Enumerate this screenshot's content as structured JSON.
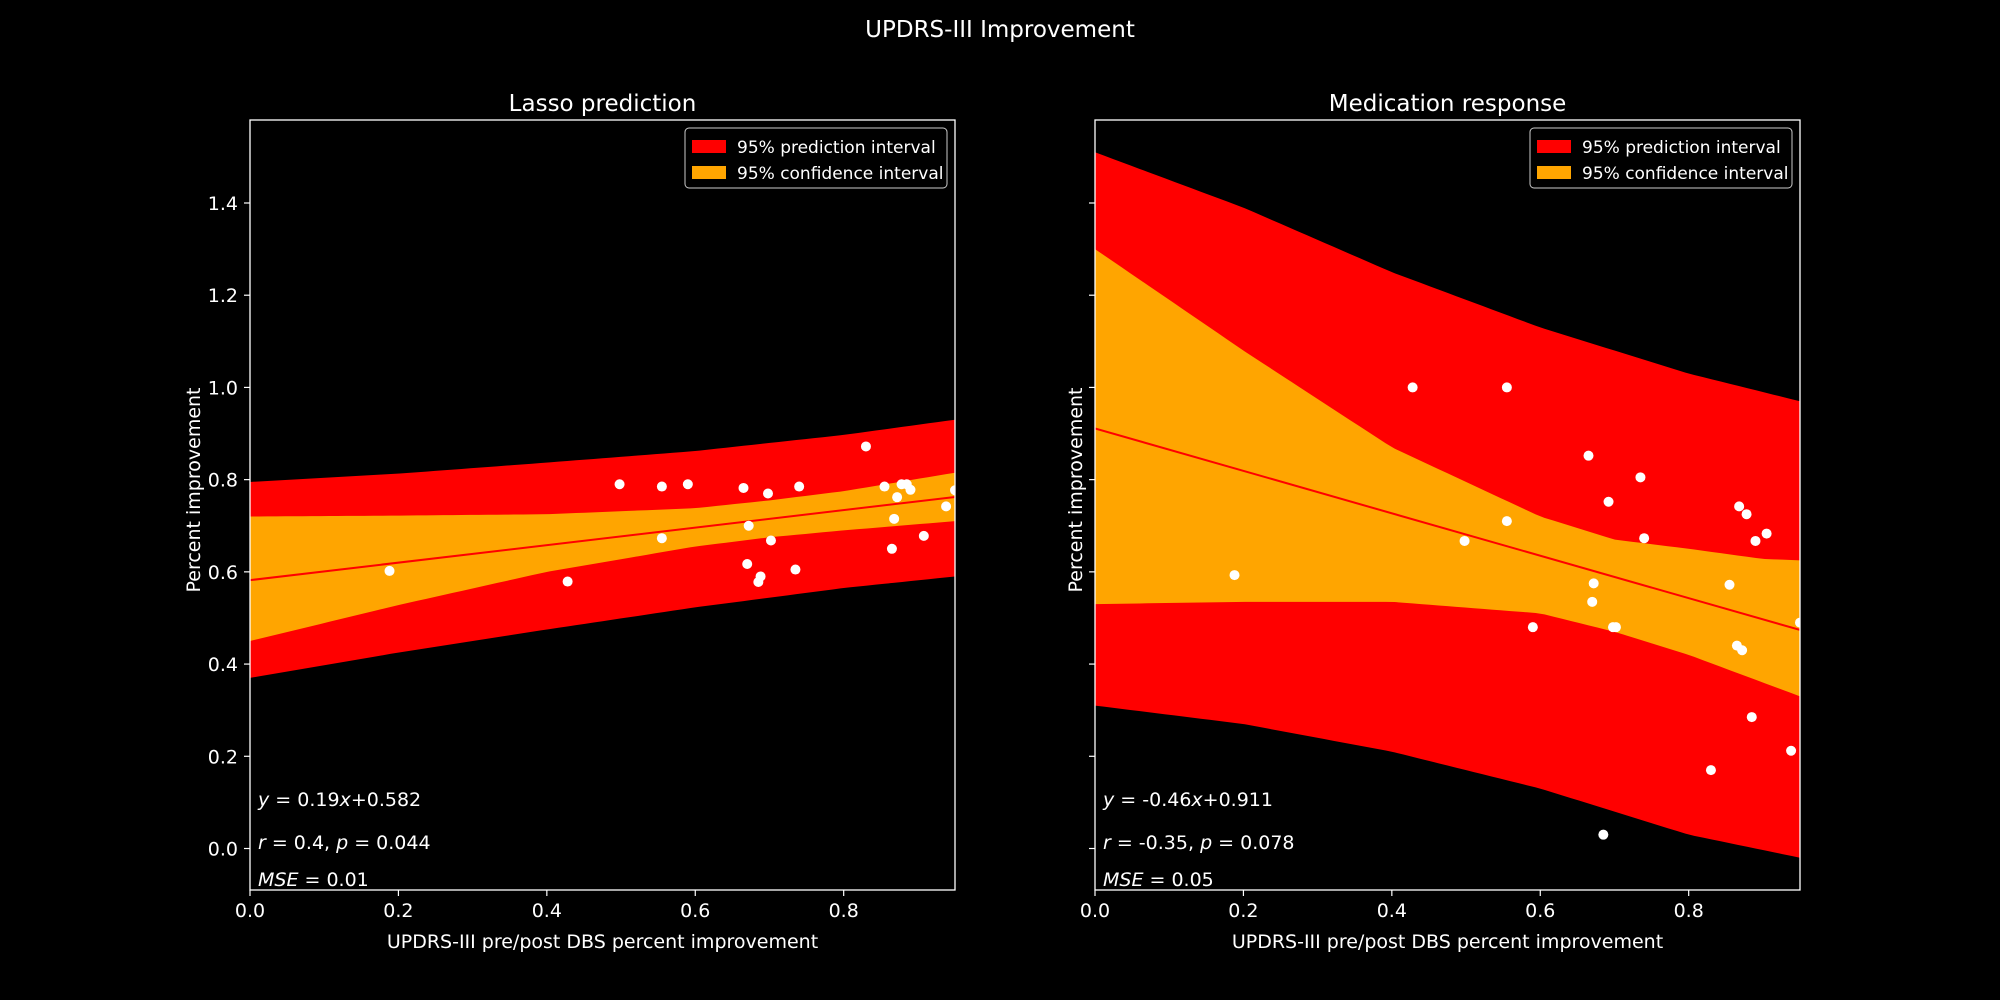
{
  "figure": {
    "title": "UPDRS-III Improvement"
  },
  "chart_data": [
    {
      "type": "scatter",
      "title": "Lasso prediction",
      "xlabel": "UPDRS-III pre/post DBS percent improvement",
      "ylabel": "Percent improvement",
      "xlim": [
        0.0,
        0.95
      ],
      "ylim": [
        -0.09,
        1.58
      ],
      "xticks": [
        0.0,
        0.2,
        0.4,
        0.6,
        0.8
      ],
      "xtick_labels": [
        "0.0",
        "0.2",
        "0.4",
        "0.6",
        "0.8"
      ],
      "yticks": [
        0.0,
        0.2,
        0.4,
        0.6,
        0.8,
        1.0,
        1.2,
        1.4
      ],
      "ytick_labels": [
        "0.0",
        "0.2",
        "0.4",
        "0.6",
        "0.8",
        "1.0",
        "1.2",
        "1.4"
      ],
      "show_ytick_labels": true,
      "legend": {
        "position": "top-right",
        "entries": [
          {
            "label": "95% prediction interval",
            "color": "#ff0000"
          },
          {
            "label": "95% confidence interval",
            "color": "#ffa500"
          }
        ]
      },
      "fit": {
        "slope": 0.19,
        "intercept": 0.582,
        "color": "#ff0000"
      },
      "prediction_band": {
        "x": [
          0.0,
          0.2,
          0.4,
          0.6,
          0.8,
          0.95
        ],
        "lower": [
          0.37,
          0.425,
          0.475,
          0.523,
          0.565,
          0.59
        ],
        "upper": [
          0.795,
          0.813,
          0.837,
          0.862,
          0.897,
          0.93
        ]
      },
      "confidence_band": {
        "x": [
          0.0,
          0.2,
          0.4,
          0.6,
          0.7,
          0.8,
          0.95
        ],
        "lower": [
          0.45,
          0.528,
          0.6,
          0.655,
          0.675,
          0.69,
          0.71
        ],
        "upper": [
          0.72,
          0.722,
          0.725,
          0.738,
          0.755,
          0.775,
          0.815
        ]
      },
      "points": {
        "x": [
          0.188,
          0.428,
          0.498,
          0.555,
          0.555,
          0.59,
          0.665,
          0.67,
          0.672,
          0.685,
          0.688,
          0.698,
          0.702,
          0.735,
          0.74,
          0.83,
          0.855,
          0.865,
          0.868,
          0.872,
          0.878,
          0.885,
          0.89,
          0.908,
          0.938,
          0.95
        ],
        "y": [
          0.602,
          0.579,
          0.79,
          0.785,
          0.673,
          0.79,
          0.782,
          0.617,
          0.7,
          0.578,
          0.59,
          0.77,
          0.668,
          0.605,
          0.785,
          0.872,
          0.785,
          0.65,
          0.715,
          0.762,
          0.79,
          0.79,
          0.778,
          0.678,
          0.742,
          0.777
        ],
        "color": "#ffffff"
      },
      "annotations": {
        "equation": {
          "lhs": "y",
          "eq": " = 0.19",
          "var": "x",
          "rest": "+0.582"
        },
        "correlation": {
          "r": "r",
          "r_val": " = 0.4, ",
          "p": "p",
          "p_val": " = 0.044"
        },
        "mse": {
          "name": "MSE",
          "val": " = 0.01"
        }
      }
    },
    {
      "type": "scatter",
      "title": "Medication response",
      "xlabel": "UPDRS-III pre/post DBS percent improvement",
      "ylabel": "Percent improvement",
      "xlim": [
        0.0,
        0.95
      ],
      "ylim": [
        -0.09,
        1.58
      ],
      "xticks": [
        0.0,
        0.2,
        0.4,
        0.6,
        0.8
      ],
      "xtick_labels": [
        "0.0",
        "0.2",
        "0.4",
        "0.6",
        "0.8"
      ],
      "yticks": [
        0.0,
        0.2,
        0.4,
        0.6,
        0.8,
        1.0,
        1.2,
        1.4
      ],
      "ytick_labels": [
        "",
        "",
        "",
        "",
        "",
        "",
        "",
        ""
      ],
      "show_ytick_labels": false,
      "legend": {
        "position": "top-right",
        "entries": [
          {
            "label": "95% prediction interval",
            "color": "#ff0000"
          },
          {
            "label": "95% confidence interval",
            "color": "#ffa500"
          }
        ]
      },
      "fit": {
        "slope": -0.46,
        "intercept": 0.911,
        "color": "#ff0000"
      },
      "prediction_band": {
        "x": [
          0.0,
          0.2,
          0.4,
          0.6,
          0.8,
          0.95
        ],
        "lower": [
          0.31,
          0.27,
          0.21,
          0.13,
          0.03,
          -0.02
        ],
        "upper": [
          1.51,
          1.39,
          1.25,
          1.13,
          1.03,
          0.97
        ]
      },
      "confidence_band": {
        "x": [
          0.0,
          0.2,
          0.4,
          0.6,
          0.7,
          0.8,
          0.9,
          0.95
        ],
        "lower": [
          0.53,
          0.535,
          0.535,
          0.51,
          0.47,
          0.42,
          0.36,
          0.33
        ],
        "upper": [
          1.3,
          1.08,
          0.87,
          0.72,
          0.67,
          0.65,
          0.628,
          0.625
        ]
      },
      "points": {
        "x": [
          0.188,
          0.428,
          0.498,
          0.555,
          0.555,
          0.59,
          0.665,
          0.67,
          0.672,
          0.685,
          0.692,
          0.698,
          0.702,
          0.735,
          0.74,
          0.83,
          0.855,
          0.865,
          0.868,
          0.872,
          0.878,
          0.885,
          0.89,
          0.905,
          0.938,
          0.95
        ],
        "y": [
          0.593,
          1.0,
          0.667,
          1.0,
          0.71,
          0.48,
          0.852,
          0.535,
          0.575,
          0.03,
          0.752,
          0.48,
          0.48,
          0.805,
          0.673,
          0.17,
          0.572,
          0.44,
          0.742,
          0.43,
          0.725,
          0.285,
          0.667,
          0.683,
          0.212,
          0.49
        ],
        "color": "#ffffff"
      },
      "annotations": {
        "equation": {
          "lhs": "y",
          "eq": " = -0.46",
          "var": "x",
          "rest": "+0.911"
        },
        "correlation": {
          "r": "r",
          "r_val": " = -0.35, ",
          "p": "p",
          "p_val": " = 0.078"
        },
        "mse": {
          "name": "MSE",
          "val": " = 0.05"
        }
      }
    }
  ]
}
